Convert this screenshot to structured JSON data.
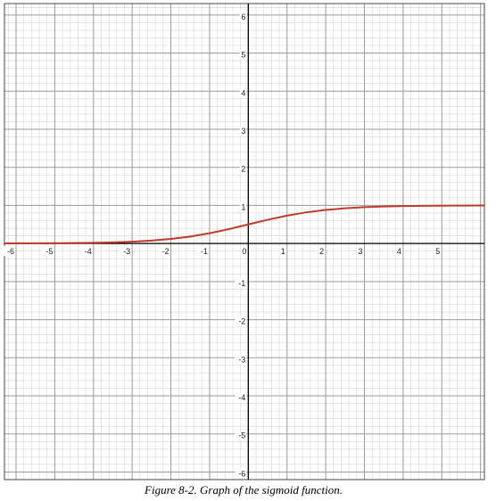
{
  "caption": "Figure 8-2. Graph of the sigmoid function.",
  "chart_data": {
    "type": "line",
    "title": "",
    "xlabel": "",
    "ylabel": "",
    "xlim": [
      -6.3,
      6.1
    ],
    "ylim": [
      -6.2,
      6.3
    ],
    "x_ticks": [
      -6,
      -5,
      -4,
      -3,
      -2,
      -1,
      0,
      1,
      2,
      3,
      4,
      5
    ],
    "x_tick_labels": [
      "-6",
      "-5",
      "-4",
      "-3",
      "-2",
      "-1",
      "0",
      "1",
      "2",
      "3",
      "4",
      "5"
    ],
    "y_ticks": [
      6,
      5,
      4,
      3,
      2,
      1,
      -1,
      -2,
      -3,
      -4,
      -5,
      -6
    ],
    "y_tick_labels": [
      "6",
      "5",
      "4",
      "3",
      "2",
      "1",
      "-1",
      "-2",
      "-3",
      "-4",
      "-5",
      "-6"
    ],
    "grid": true,
    "minor_grid_per_unit": 5,
    "series": [
      {
        "color": "#c0392b",
        "x": [
          -6.3,
          -6,
          -5.5,
          -5,
          -4.5,
          -4,
          -3.5,
          -3,
          -2.5,
          -2,
          -1.5,
          -1,
          -0.5,
          0,
          0.5,
          1,
          1.5,
          2,
          2.5,
          3,
          3.5,
          4,
          4.5,
          5,
          5.5,
          6,
          6.1
        ],
        "y": [
          0.0018,
          0.0025,
          0.0041,
          0.0067,
          0.011,
          0.018,
          0.029,
          0.047,
          0.076,
          0.119,
          0.182,
          0.269,
          0.378,
          0.5,
          0.622,
          0.731,
          0.818,
          0.881,
          0.924,
          0.953,
          0.971,
          0.982,
          0.989,
          0.993,
          0.996,
          0.998,
          0.998
        ]
      }
    ]
  },
  "colors": {
    "major_grid": "#9a9a9a",
    "minor_grid": "#d4d4d4",
    "axis": "#000000",
    "curve": "#c0392b",
    "frame": "#444444"
  }
}
